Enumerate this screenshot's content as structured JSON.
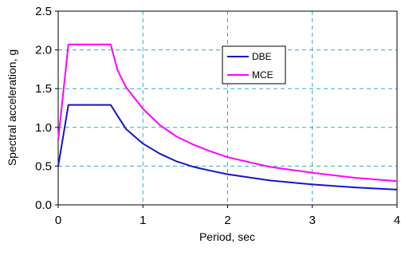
{
  "chart_data": {
    "type": "line",
    "title": "",
    "xlabel": "Period, sec",
    "ylabel": "Spectral acceleration, g",
    "xlim": [
      0,
      4
    ],
    "ylim": [
      0,
      2.5
    ],
    "x_ticks": [
      "0",
      "1",
      "2",
      "3",
      "4"
    ],
    "y_ticks": [
      "0.0",
      "0.5",
      "1.0",
      "1.5",
      "2.0",
      "2.5"
    ],
    "grid": true,
    "legend_position": "upper-center-right",
    "series": [
      {
        "name": "DBE",
        "color": "#1414c8",
        "points": [
          [
            0,
            0.5
          ],
          [
            0.12,
            1.29
          ],
          [
            0.2,
            1.29
          ],
          [
            0.4,
            1.29
          ],
          [
            0.62,
            1.29
          ],
          [
            0.7,
            1.15
          ],
          [
            0.8,
            0.98
          ],
          [
            1.0,
            0.79
          ],
          [
            1.2,
            0.66
          ],
          [
            1.4,
            0.56
          ],
          [
            1.6,
            0.49
          ],
          [
            1.8,
            0.44
          ],
          [
            2.0,
            0.395
          ],
          [
            2.5,
            0.315
          ],
          [
            3.0,
            0.263
          ],
          [
            3.5,
            0.225
          ],
          [
            4.0,
            0.197
          ]
        ]
      },
      {
        "name": "MCE",
        "color": "#ff00ff",
        "points": [
          [
            0,
            0.84
          ],
          [
            0.12,
            2.07
          ],
          [
            0.2,
            2.07
          ],
          [
            0.4,
            2.07
          ],
          [
            0.62,
            2.07
          ],
          [
            0.7,
            1.74
          ],
          [
            0.8,
            1.52
          ],
          [
            1.0,
            1.24
          ],
          [
            1.2,
            1.03
          ],
          [
            1.4,
            0.88
          ],
          [
            1.6,
            0.775
          ],
          [
            1.8,
            0.69
          ],
          [
            2.0,
            0.615
          ],
          [
            2.5,
            0.49
          ],
          [
            3.0,
            0.415
          ],
          [
            3.5,
            0.35
          ],
          [
            4.0,
            0.307
          ]
        ]
      }
    ]
  }
}
